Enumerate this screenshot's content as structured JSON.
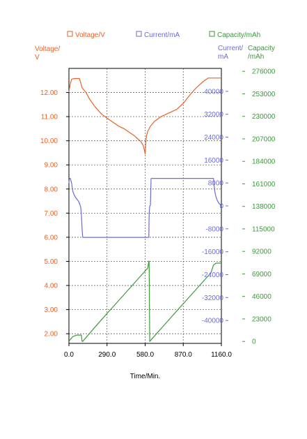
{
  "chart_data": {
    "type": "line",
    "xlabel": "Time/Min.",
    "xlim": [
      0,
      1160
    ],
    "x_ticks": [
      "0.0",
      "290.0",
      "580.0",
      "870.0",
      "1160.0"
    ],
    "x_tick_values": [
      0,
      290,
      580,
      870,
      1160
    ],
    "grid": true,
    "legend_position": "top",
    "legend": [
      {
        "label": "Voltage/V",
        "color": "#e8622a"
      },
      {
        "label": "Current/mA",
        "color": "#6b6bd6"
      },
      {
        "label": "Capacity/mAh",
        "color": "#3a9a3a"
      }
    ],
    "axes": {
      "voltage": {
        "label_lines": [
          "Voltage/",
          "V"
        ],
        "ylim": [
          1.6,
          13.0
        ],
        "ticks": [
          2.0,
          3.0,
          4.0,
          5.0,
          6.0,
          7.0,
          8.0,
          9.0,
          10.0,
          11.0,
          12.0
        ],
        "tick_labels": [
          "2.00",
          "3.00",
          "4.00",
          "5.00",
          "6.00",
          "7.00",
          "8.00",
          "9.00",
          "10.00",
          "11.00",
          "12.00"
        ],
        "color": "#e8622a"
      },
      "current": {
        "label_lines": [
          "Current/",
          "mA"
        ],
        "ylim": [
          -48000,
          48000
        ],
        "ticks": [
          -40000,
          -32000,
          -24000,
          -16000,
          -8000,
          0,
          8000,
          16000,
          24000,
          32000,
          40000
        ],
        "tick_labels": [
          "-40000",
          "-32000",
          "-24000",
          "-16000",
          "-8000",
          "0",
          "8000",
          "16000",
          "24000",
          "32000",
          "40000"
        ],
        "color": "#6b6bd6"
      },
      "capacity": {
        "label_lines": [
          "Capacity",
          "/mAh"
        ],
        "ylim": [
          -2000,
          279000
        ],
        "ticks": [
          0,
          23000,
          46000,
          69000,
          92000,
          115000,
          138000,
          161000,
          184000,
          207000,
          230000,
          253000,
          276000
        ],
        "tick_labels": [
          "0",
          "23000",
          "46000",
          "69000",
          "92000",
          "115000",
          "138000",
          "161000",
          "184000",
          "207000",
          "230000",
          "253000",
          "276000"
        ],
        "color": "#3a9a3a"
      }
    },
    "series": [
      {
        "name": "Voltage/V",
        "axis": "voltage",
        "x": [
          0,
          5,
          10,
          20,
          40,
          60,
          80,
          100,
          130,
          160,
          200,
          250,
          300,
          340,
          380,
          420,
          460,
          500,
          530,
          550,
          565,
          575,
          580,
          585,
          590,
          600,
          620,
          650,
          700,
          760,
          820,
          870,
          920,
          970,
          1020,
          1060,
          1080,
          1110,
          1140,
          1160
        ],
        "y": [
          12.0,
          12.2,
          12.35,
          12.55,
          12.58,
          12.58,
          12.58,
          12.2,
          12.0,
          11.7,
          11.4,
          11.1,
          10.9,
          10.75,
          10.6,
          10.5,
          10.35,
          10.2,
          10.05,
          9.95,
          9.8,
          9.6,
          9.45,
          9.9,
          10.2,
          10.4,
          10.6,
          10.8,
          11.0,
          11.15,
          11.3,
          11.55,
          11.9,
          12.2,
          12.45,
          12.6,
          12.6,
          12.6,
          12.6,
          12.6
        ]
      },
      {
        "name": "Current/mA",
        "axis": "current",
        "x": [
          0,
          2,
          5,
          10,
          15,
          20,
          25,
          30,
          40,
          50,
          60,
          70,
          80,
          90,
          95,
          100,
          105,
          300,
          500,
          600,
          608,
          610,
          615,
          620,
          625,
          630,
          700,
          900,
          1100,
          1105,
          1110,
          1120,
          1130,
          1140,
          1150,
          1160
        ],
        "y": [
          8000,
          9000,
          9600,
          9600,
          9000,
          8000,
          6500,
          5000,
          3800,
          3000,
          2400,
          1800,
          1000,
          -500,
          -3000,
          -8000,
          -11000,
          -11000,
          -11000,
          -11000,
          -11000,
          -3000,
          0,
          300,
          9500,
          9600,
          9600,
          9600,
          9600,
          7000,
          5000,
          3000,
          1800,
          1000,
          500,
          100
        ]
      },
      {
        "name": "Capacity/mAh",
        "axis": "capacity",
        "x": [
          0,
          10,
          30,
          60,
          80,
          95,
          100,
          105,
          200,
          300,
          400,
          500,
          600,
          608,
          610,
          615,
          700,
          800,
          900,
          1000,
          1080,
          1100,
          1120,
          1140,
          1160
        ],
        "y": [
          0,
          2000,
          5000,
          6500,
          6500,
          6500,
          0,
          0,
          15000,
          30000,
          45000,
          60000,
          75000,
          82000,
          82000,
          0,
          13000,
          28000,
          43000,
          58000,
          70000,
          78000,
          80000,
          80000,
          80000
        ]
      }
    ]
  }
}
